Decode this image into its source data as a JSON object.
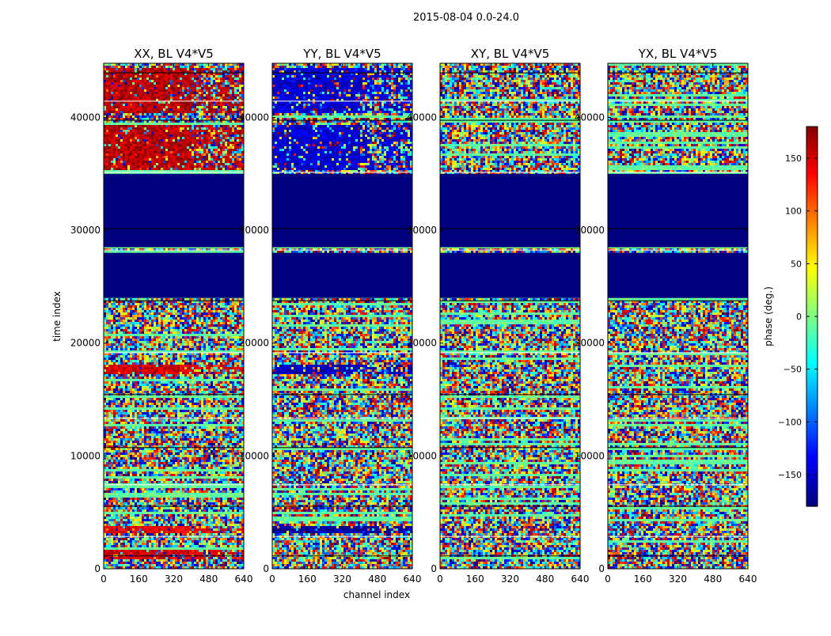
{
  "figure_title": "2015-08-04 0.0-24.0",
  "x_axis_label": "channel index",
  "y_axis_label": "time index",
  "colorbar_label": "phase (deg.)",
  "colorbar_ticks": [
    {
      "value": 150,
      "label": "150"
    },
    {
      "value": 100,
      "label": "100"
    },
    {
      "value": 50,
      "label": "50"
    },
    {
      "value": 0,
      "label": "0"
    },
    {
      "value": -50,
      "label": "−50"
    },
    {
      "value": -100,
      "label": "−100"
    },
    {
      "value": -150,
      "label": "−150"
    }
  ],
  "colors": {
    "masked": "#00007f",
    "background": "#ffffff",
    "text": "#000000"
  },
  "chart_data": {
    "type": "heatmap",
    "title": "2015-08-04 0.0-24.0",
    "xlabel": "channel index",
    "ylabel": "time index",
    "xlim": [
      0,
      640
    ],
    "ylim": [
      0,
      44800
    ],
    "x_ticks": [
      0,
      160,
      320,
      480,
      640
    ],
    "y_ticks": [
      0,
      10000,
      20000,
      30000,
      40000
    ],
    "colorbar": {
      "label": "phase (deg.)",
      "range": [
        -180,
        180
      ],
      "colormap": "jet"
    },
    "masked_time_ranges": [
      [
        24000,
        28000
      ],
      [
        28500,
        35000
      ]
    ],
    "panels": [
      {
        "title": "XX, BL V4*V5",
        "dominant_phase_ranges": [
          {
            "t": [
              35500,
              39500
            ],
            "phase": 160
          },
          {
            "t": [
              40500,
              44500
            ],
            "phase": 160
          },
          {
            "t": [
              17400,
              18200
            ],
            "phase": 150
          },
          {
            "t": [
              3200,
              3800
            ],
            "phase": 140
          },
          {
            "t": [
              1000,
              1700
            ],
            "phase": 150
          }
        ]
      },
      {
        "title": "YY, BL V4*V5",
        "dominant_phase_ranges": [
          {
            "t": [
              35500,
              39500
            ],
            "phase": -150
          },
          {
            "t": [
              40500,
              44500
            ],
            "phase": -150
          },
          {
            "t": [
              17400,
              18200
            ],
            "phase": -160
          },
          {
            "t": [
              3200,
              3800
            ],
            "phase": -170
          }
        ]
      },
      {
        "title": "XY, BL V4*V5",
        "dominant_phase_ranges": []
      },
      {
        "title": "YX, BL V4*V5",
        "dominant_phase_ranges": []
      }
    ]
  }
}
